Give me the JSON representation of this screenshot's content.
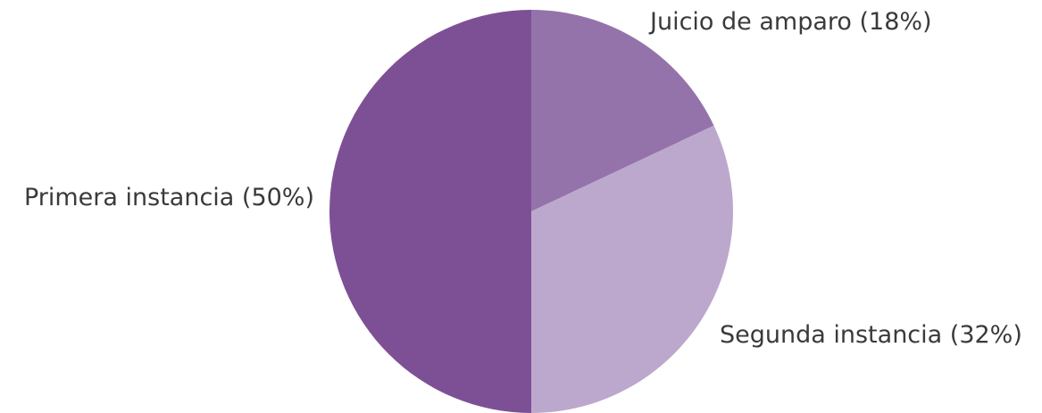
{
  "chart_data": {
    "type": "pie",
    "title": "",
    "slices": [
      {
        "label": "Juicio de amparo (18%)",
        "value": 18,
        "color": "#9473ab"
      },
      {
        "label": "Segunda instancia (32%)",
        "value": 32,
        "color": "#bca8cd"
      },
      {
        "label": "Primera instancia (50%)",
        "value": 50,
        "color": "#7d5096"
      }
    ],
    "start": "top",
    "direction": "clockwise",
    "legend": "none"
  }
}
